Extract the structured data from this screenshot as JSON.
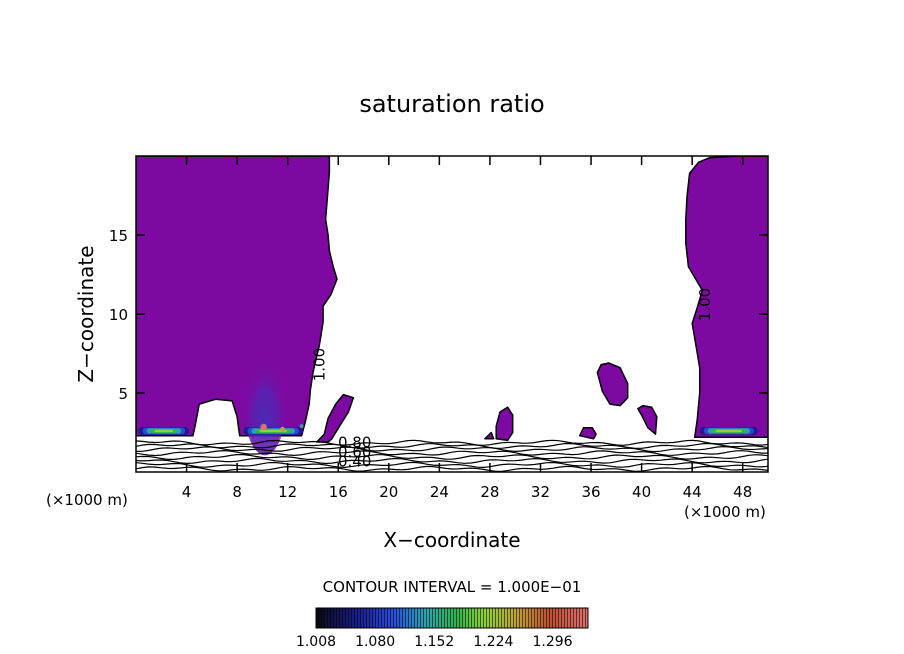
{
  "chart_data": {
    "type": "contour",
    "title": "saturation ratio",
    "xlabel": "X−coordinate",
    "ylabel": "Z−coordinate",
    "x_unit_left": "(×1000 m)",
    "x_unit_right": "(×1000 m)",
    "xlim": [
      0,
      50
    ],
    "ylim": [
      0,
      20
    ],
    "x_ticks": [
      4,
      8,
      12,
      16,
      20,
      24,
      28,
      32,
      36,
      40,
      44,
      48
    ],
    "y_ticks": [
      5,
      10,
      15
    ],
    "contour_interval_text": "CONTOUR INTERVAL = 1.000E−01",
    "contour_line_labels": [
      {
        "text": "1.00",
        "x": 14.9,
        "y": 6.8
      },
      {
        "text": "1.00",
        "x": 45.4,
        "y": 10.6
      },
      {
        "text": "0.80",
        "x": 17.3,
        "y": 1.55
      },
      {
        "text": "0.60",
        "x": 17.3,
        "y": 0.95
      },
      {
        "text": "0.40",
        "x": 17.3,
        "y": 0.35
      }
    ],
    "colorbar": {
      "tick_labels": [
        "1.008",
        "1.080",
        "1.152",
        "1.224",
        "1.296"
      ],
      "colors": [
        "#0a0a14",
        "#1c1c8c",
        "#2a4adc",
        "#2aa2b4",
        "#34b44a",
        "#8ed23a",
        "#c0a030",
        "#c05030",
        "#e07070"
      ]
    },
    "colors": {
      "saturated_fill": "#7e09a2",
      "inner_plume": "#6a18a8",
      "core_plume": "#5424b4",
      "outline": "#000000"
    },
    "saturated_regions": [
      {
        "name": "left-cloud",
        "points": [
          [
            0,
            20
          ],
          [
            15.3,
            20
          ],
          [
            15.3,
            19
          ],
          [
            15.1,
            17
          ],
          [
            15,
            16
          ],
          [
            15.2,
            15
          ],
          [
            15.3,
            14
          ],
          [
            15.6,
            13
          ],
          [
            15.9,
            12.2
          ],
          [
            15.4,
            11.2
          ],
          [
            14.8,
            10.5
          ],
          [
            14.8,
            9.5
          ],
          [
            14.5,
            8
          ],
          [
            14.2,
            7
          ],
          [
            14,
            6.3
          ],
          [
            13.8,
            5.2
          ],
          [
            13.7,
            4.3
          ],
          [
            13.4,
            3.2
          ],
          [
            13.1,
            2.3
          ],
          [
            8.2,
            2.3
          ],
          [
            8.0,
            3.5
          ],
          [
            7.6,
            4.5
          ],
          [
            6.3,
            4.6
          ],
          [
            5,
            4.3
          ],
          [
            4.7,
            3
          ],
          [
            4.5,
            2.3
          ],
          [
            0,
            2.3
          ]
        ]
      },
      {
        "name": "right-cloud",
        "points": [
          [
            50,
            20
          ],
          [
            50,
            2.2
          ],
          [
            44.2,
            2.2
          ],
          [
            44.4,
            3.3
          ],
          [
            44.6,
            5
          ],
          [
            44.6,
            6.6
          ],
          [
            44.3,
            8
          ],
          [
            44.0,
            9.4
          ],
          [
            44.4,
            10.4
          ],
          [
            44.8,
            11.5
          ],
          [
            43.7,
            13
          ],
          [
            43.5,
            14.5
          ],
          [
            43.5,
            16
          ],
          [
            43.6,
            17.5
          ],
          [
            43.8,
            18.9
          ],
          [
            44.5,
            19.6
          ],
          [
            45.4,
            19.9
          ],
          [
            47.7,
            20
          ]
        ]
      },
      {
        "name": "small-cloud-a",
        "points": [
          [
            14.3,
            1.9
          ],
          [
            14.9,
            2.4
          ],
          [
            15.2,
            3.4
          ],
          [
            15.8,
            4.3
          ],
          [
            16.4,
            4.9
          ],
          [
            17.2,
            4.7
          ],
          [
            16.8,
            3.8
          ],
          [
            16.1,
            2.9
          ],
          [
            15.5,
            2.1
          ],
          [
            15.2,
            1.9
          ]
        ]
      },
      {
        "name": "small-cloud-b",
        "points": [
          [
            28.5,
            2.1
          ],
          [
            28.5,
            2.9
          ],
          [
            28.8,
            3.8
          ],
          [
            29.4,
            4.1
          ],
          [
            29.8,
            3.6
          ],
          [
            29.8,
            2.5
          ],
          [
            29.4,
            2.0
          ]
        ]
      },
      {
        "name": "small-cloud-c",
        "points": [
          [
            35.1,
            2.3
          ],
          [
            35.4,
            2.8
          ],
          [
            36.1,
            2.8
          ],
          [
            36.4,
            2.4
          ],
          [
            36.2,
            2.1
          ]
        ]
      },
      {
        "name": "small-cloud-d",
        "points": [
          [
            36.5,
            6.3
          ],
          [
            36.9,
            5.1
          ],
          [
            37.5,
            4.3
          ],
          [
            38.3,
            4.2
          ],
          [
            38.9,
            4.7
          ],
          [
            38.9,
            5.6
          ],
          [
            38.3,
            6.6
          ],
          [
            37.4,
            6.9
          ],
          [
            36.8,
            6.8
          ]
        ]
      },
      {
        "name": "small-cloud-e",
        "points": [
          [
            39.7,
            4.0
          ],
          [
            40.0,
            3.6
          ],
          [
            40.5,
            2.8
          ],
          [
            41.1,
            2.4
          ],
          [
            41.2,
            3.5
          ],
          [
            40.8,
            4.1
          ],
          [
            40.1,
            4.2
          ]
        ]
      },
      {
        "name": "tiny-cloud-f",
        "points": [
          [
            27.6,
            2.1
          ],
          [
            28.1,
            2.5
          ],
          [
            28.3,
            2.1
          ]
        ]
      }
    ],
    "surface_contours_y": [
      0.2,
      0.45,
      0.7,
      0.95,
      1.2,
      1.45,
      1.65,
      1.85
    ]
  }
}
